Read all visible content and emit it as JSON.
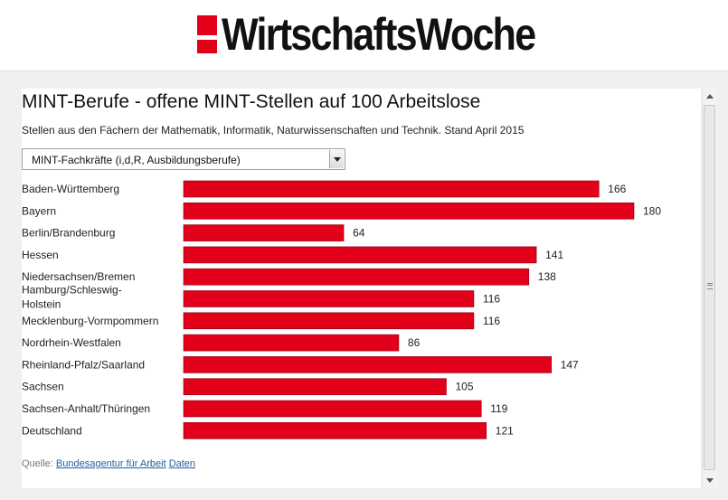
{
  "header": {
    "logo_text": "WirtschaftsWoche"
  },
  "filter": {
    "selected": "MINT-Fachkräfte (i,d,R, Ausbildungsberufe)"
  },
  "source": {
    "label": "Quelle:",
    "link_text": "Bundesagentur für Arbeit",
    "data_link_text": "Daten"
  },
  "chart_data": {
    "type": "bar",
    "orientation": "horizontal",
    "title": "MINT-Berufe - offene MINT-Stellen auf 100 Arbeitslose",
    "subtitle": "Stellen aus den Fächern der Mathematik, Informatik, Naturwissenschaften und Technik. Stand April 2015",
    "categories": [
      "Baden-Württemberg",
      "Bayern",
      "Berlin/Brandenburg",
      "Hessen",
      "Niedersachsen/Bremen",
      "Hamburg/Schleswig-Holstein",
      "Mecklenburg-Vormpommern",
      "Nordrhein-Westfalen",
      "Rheinland-Pfalz/Saarland",
      "Sachsen",
      "Sachsen-Anhalt/Thüringen",
      "Deutschland"
    ],
    "values": [
      166,
      180,
      64,
      141,
      138,
      116,
      116,
      86,
      147,
      105,
      119,
      121
    ],
    "bar_color": "#e2001a",
    "xlim": [
      0,
      180
    ],
    "grid": false,
    "legend": "none"
  }
}
